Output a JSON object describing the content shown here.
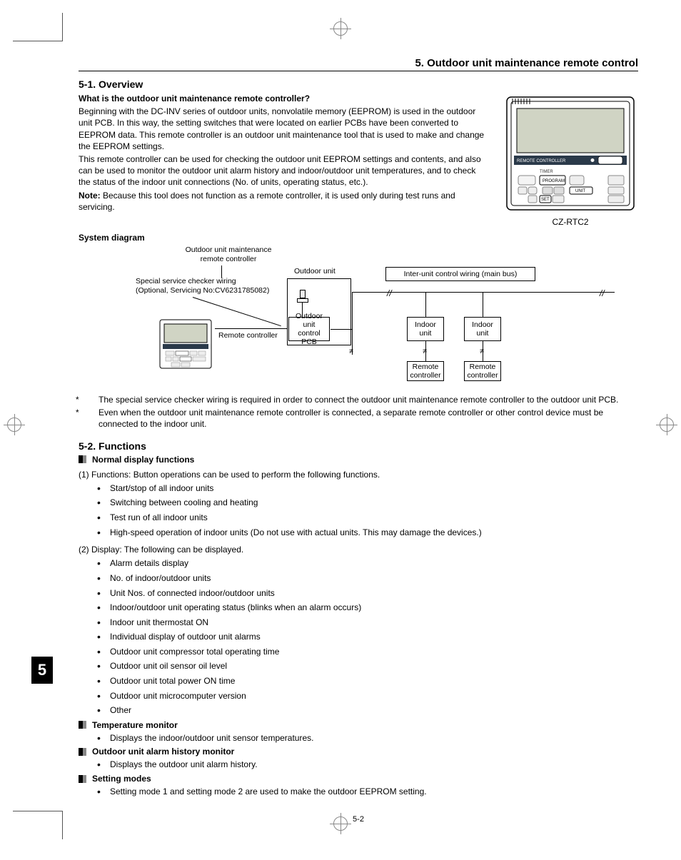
{
  "header": {
    "title": "5. Outdoor unit maintenance remote control"
  },
  "section_tab": "5",
  "s51": {
    "title": "5-1. Overview",
    "q": "What is the outdoor unit maintenance remote controller?",
    "p1": "Beginning with the DC-INV series of outdoor units, nonvolatile memory (EEPROM) is used in the outdoor unit PCB. In this way, the setting switches that were located on earlier PCBs have been converted to EEPROM data. This remote controller is an outdoor unit maintenance tool that is used to make and change the EEPROM settings.",
    "p2": "This remote controller can be used for checking the outdoor unit EEPROM settings and contents, and also can be used to monitor the outdoor unit alarm history and indoor/outdoor unit temperatures, and to check the status of the indoor unit connections (No. of units, operating status, etc.).",
    "note_lbl": "Note:",
    "note": " Because this tool does not function as a remote controller, it is used only during test runs and servicing.",
    "remote_model": "CZ-RTC2",
    "remote_banner": "REMOTE CONTROLLER",
    "remote_btns": {
      "timer": "TIMER",
      "program": "PROGRAM",
      "unit": "UNIT",
      "set": "SET"
    }
  },
  "sysdiag": {
    "title": "System diagram",
    "maint_rc": "Outdoor unit maintenance\nremote controller",
    "special": "Special service checker wiring\n(Optional, Servicing No:CV6231785082)",
    "rc": "Remote controller",
    "outdoor_unit": "Outdoor unit",
    "outdoor_pcb": "Outdoor unit\ncontrol PCB",
    "interunit": "Inter-unit control wiring (main bus)",
    "indoor": "Indoor\nunit",
    "remote_ctrl": "Remote\ncontroller"
  },
  "notes": {
    "n1": "The special service checker wiring is required in order to connect the outdoor unit maintenance remote controller to the outdoor unit PCB.",
    "n2": "Even when the outdoor unit maintenance remote controller is connected, a separate remote controller or other control device must be connected to the indoor unit."
  },
  "s52": {
    "title": "5-2. Functions",
    "normal": "Normal display functions",
    "fn_intro": "(1) Functions: Button operations can be used to perform the following functions.",
    "fn_items": [
      "Start/stop of all indoor units",
      "Switching between cooling and heating",
      "Test run of all indoor units",
      "High-speed operation of indoor units (Do not use with actual units. This may damage the devices.)"
    ],
    "disp_intro": "(2) Display: The following can be displayed.",
    "disp_items": [
      "Alarm details display",
      "No. of indoor/outdoor units",
      "Unit Nos. of connected indoor/outdoor units",
      "Indoor/outdoor unit operating status (blinks when an alarm occurs)",
      "Indoor unit thermostat ON",
      "Individual display of outdoor unit alarms",
      "Outdoor unit compressor total operating time",
      "Outdoor unit oil sensor oil level",
      "Outdoor unit total power ON time",
      "Outdoor unit microcomputer version",
      "Other"
    ],
    "temp_title": "Temperature monitor",
    "temp_item": "Displays the indoor/outdoor unit sensor temperatures.",
    "alarm_title": "Outdoor unit alarm history monitor",
    "alarm_item": "Displays the outdoor unit alarm history.",
    "setting_title": "Setting modes",
    "setting_item": "Setting mode 1 and setting mode 2 are used to make the outdoor EEPROM setting."
  },
  "page_no": "5-2",
  "colors": {
    "text": "#000000",
    "bg": "#ffffff",
    "mark": "#888888",
    "lcd": "#d0d4c4"
  }
}
